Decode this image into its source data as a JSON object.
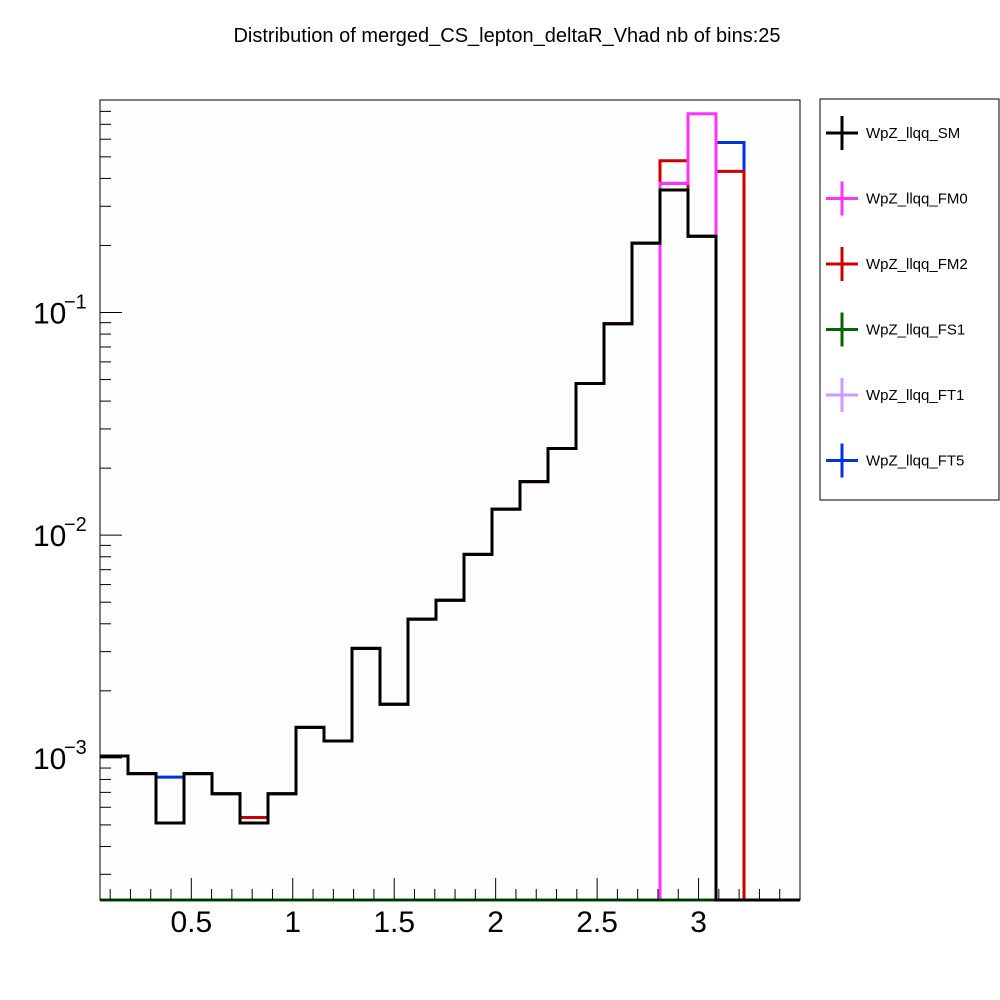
{
  "chart_data": {
    "type": "line",
    "title": "Distribution of merged_CS_lepton_deltaR_Vhad nb of bins:25",
    "xlabel": "",
    "ylabel": "",
    "y_scale": "log",
    "xlim": [
      0.05,
      3.5
    ],
    "ylim": [
      0.00023,
      0.9
    ],
    "grid": false,
    "legend_position": "outside-right",
    "x_ticks": [
      0.5,
      1,
      1.5,
      2,
      2.5,
      3
    ],
    "x_tick_labels": [
      "0.5",
      "1",
      "1.5",
      "2",
      "2.5",
      "3"
    ],
    "y_ticks": [
      {
        "value": 0.001,
        "base": "10",
        "exp": "−3"
      },
      {
        "value": 0.01,
        "base": "10",
        "exp": "−2"
      },
      {
        "value": 0.1,
        "base": "10",
        "exp": "−1"
      }
    ],
    "bin_edges": [
      0.05,
      0.188,
      0.326,
      0.464,
      0.602,
      0.74,
      0.878,
      1.016,
      1.154,
      1.292,
      1.43,
      1.568,
      1.706,
      1.844,
      1.982,
      2.12,
      2.258,
      2.396,
      2.534,
      2.672,
      2.81,
      2.948,
      3.086,
      3.224,
      3.362,
      3.5
    ],
    "series": [
      {
        "name": "WpZ_llqq_SM",
        "color": "#000000",
        "values": [
          0.00102,
          0.00085,
          0.00051,
          0.00085,
          0.00069,
          0.00051,
          0.00069,
          0.00137,
          0.00119,
          0.0031,
          0.00174,
          0.0042,
          0.0051,
          0.0082,
          0.0131,
          0.0174,
          0.0245,
          0.048,
          0.089,
          0.205,
          0.355,
          0.22,
          0,
          0,
          0
        ]
      },
      {
        "name": "WpZ_llqq_FM0",
        "color": "#ff33ff",
        "values": [
          0,
          0,
          0,
          0,
          0,
          0,
          0,
          0,
          0,
          0,
          0,
          0,
          0,
          0,
          0,
          0,
          0,
          0,
          0,
          0,
          0.38,
          0.78,
          0,
          0,
          0
        ]
      },
      {
        "name": "WpZ_llqq_FM2",
        "color": "#cc0000",
        "values": [
          0.00102,
          0.00085,
          0.00051,
          0.00085,
          0.00069,
          0.00054,
          0.00069,
          0.00137,
          0.00119,
          0.0031,
          0.00174,
          0.0042,
          0.0051,
          0.0082,
          0.0131,
          0.0174,
          0.0245,
          0.048,
          0.089,
          0.205,
          0.48,
          0.22,
          0.43,
          0,
          0
        ]
      },
      {
        "name": "WpZ_llqq_FS1",
        "color": "#006600",
        "values": [
          0,
          0,
          0,
          0,
          0,
          0,
          0,
          0,
          0,
          0,
          0,
          0,
          0,
          0,
          0,
          0,
          0,
          0,
          0,
          0,
          0,
          0,
          0,
          0,
          0
        ]
      },
      {
        "name": "WpZ_llqq_FT1",
        "color": "#cc99ff",
        "values": [
          0,
          0,
          0,
          0,
          0,
          0,
          0,
          0,
          0,
          0,
          0,
          0,
          0,
          0,
          0,
          0,
          0,
          0,
          0,
          0,
          0,
          0,
          0,
          0,
          0
        ]
      },
      {
        "name": "WpZ_llqq_FT5",
        "color": "#0033dd",
        "values": [
          0.00102,
          0.00085,
          0.00082,
          0.00085,
          0.00069,
          0.00051,
          0.00069,
          0.00137,
          0.00119,
          0.0031,
          0.00174,
          0.0042,
          0.0051,
          0.0082,
          0.0131,
          0.0174,
          0.0245,
          0.048,
          0.089,
          0.205,
          0.38,
          0.22,
          0.58,
          0,
          0
        ]
      }
    ],
    "draw_order": [
      5,
      2,
      1,
      4,
      3,
      0
    ]
  }
}
